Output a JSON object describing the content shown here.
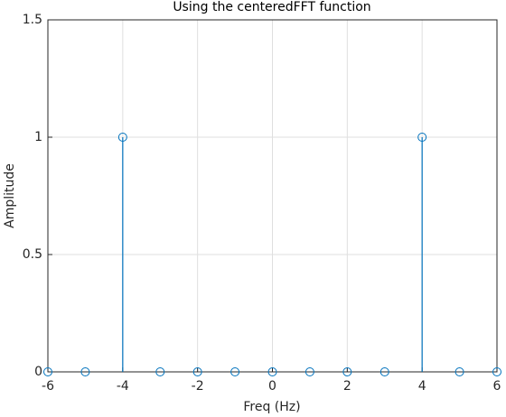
{
  "chart_data": {
    "type": "stem",
    "title": "Using the centeredFFT function",
    "x_label": "Freq (Hz)",
    "y_label": "Amplitude",
    "x": [
      -6,
      -5,
      -4,
      -3,
      -2,
      -1,
      0,
      1,
      2,
      3,
      4,
      5,
      6
    ],
    "values": [
      0,
      0,
      1,
      0,
      0,
      0,
      0,
      0,
      0,
      0,
      1,
      0,
      0
    ],
    "color": "#0072bd",
    "xlim": [
      -6,
      6
    ],
    "xticks": [
      -6,
      -4,
      -2,
      0,
      2,
      4,
      6
    ],
    "ylim": [
      0,
      1.5
    ],
    "yticks": [
      0,
      0.5,
      1,
      1.5
    ],
    "grid": true
  }
}
